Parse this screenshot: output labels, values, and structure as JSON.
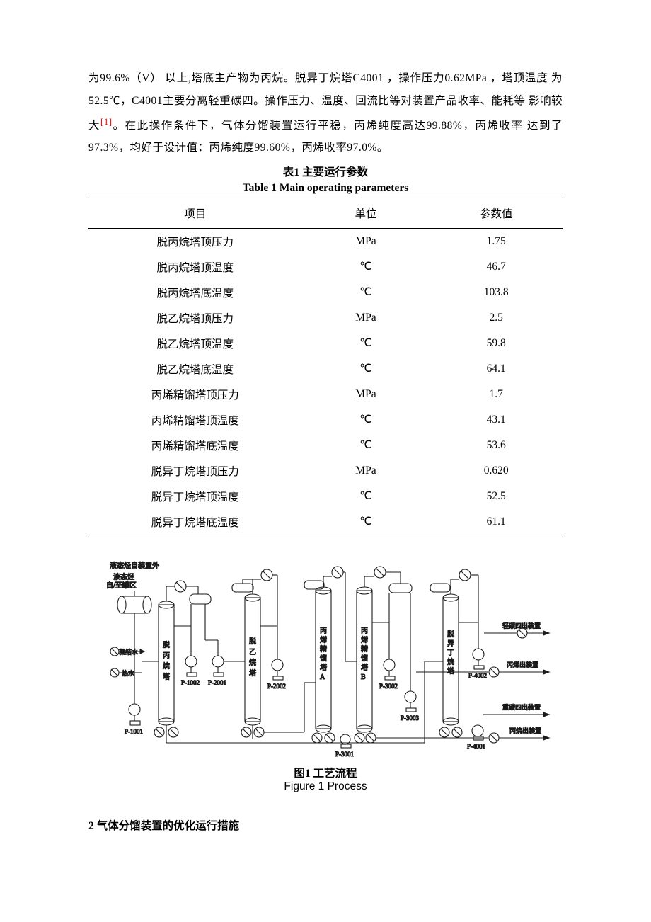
{
  "paragraph": {
    "line1a": "为99.6%（V） 以上,塔底主产物为丙烷。脱异丁烷塔C4001 ，操作压力0.62MPa ，塔顶温度",
    "line2": "为52.5℃，C4001主要分离轻重碳四。操作压力、温度、回流比等对装置产品收率、能耗等",
    "line3a": "影响较大",
    "ref": "[1]",
    "line3b": "。在此操作条件下，气体分馏装置运行平稳，丙烯纯度高达99.88%，丙烯收率",
    "line4": "达到了97.3%，均好于设计值：丙烯纯度99.60%，丙烯收率97.0%。"
  },
  "table": {
    "title_cn": "表1 主要运行参数",
    "title_en": "Table 1 Main operating parameters",
    "columns": [
      "项目",
      "单位",
      "参数值"
    ],
    "col_widths": [
      "45%",
      "27%",
      "28%"
    ],
    "rows": [
      [
        "脱丙烷塔顶压力",
        "MPa",
        "1.75"
      ],
      [
        "脱丙烷塔顶温度",
        "℃",
        "46.7"
      ],
      [
        "脱丙烷塔底温度",
        "℃",
        "103.8"
      ],
      [
        "脱乙烷塔顶压力",
        "MPa",
        "2.5"
      ],
      [
        "脱乙烷塔顶温度",
        "℃",
        "59.8"
      ],
      [
        "脱乙烷塔底温度",
        "℃",
        "64.1"
      ],
      [
        "丙烯精馏塔顶压力",
        "MPa",
        "1.7"
      ],
      [
        "丙烯精馏塔顶温度",
        "℃",
        "43.1"
      ],
      [
        "丙烯精馏塔底温度",
        "℃",
        "53.6"
      ],
      [
        "脱异丁烷塔顶压力",
        "MPa",
        "0.620"
      ],
      [
        "脱异丁烷塔顶温度",
        "℃",
        "52.5"
      ],
      [
        "脱异丁烷塔底温度",
        "℃",
        "61.1"
      ]
    ]
  },
  "figure": {
    "caption_cn": "图1 工艺流程",
    "caption_en": "Figure 1 Process",
    "stroke": "#1a1a1a",
    "stroke_width": 1.1,
    "bg": "#ffffff",
    "inlets": {
      "top": "液态烃自装置外",
      "mid1": "液态烃",
      "mid2": "自/至罐区",
      "cond": "凝结水",
      "hot": "热水"
    },
    "pumps": {
      "p1001": "P-1001",
      "p1002": "P-1002",
      "p2001": "P-2001",
      "p2002": "P-2002",
      "p3001": "P-3001",
      "p3002": "P-3002",
      "p3003": "P-3003",
      "p4001": "P-4001",
      "p4002": "P-4002"
    },
    "towers": {
      "t1a": "脱",
      "t1b": "丙",
      "t1c": "烷",
      "t1d": "塔",
      "t2a": "脱",
      "t2b": "乙",
      "t2c": "烷",
      "t2d": "塔",
      "t3a": "丙",
      "t3b": "烯",
      "t3c": "精",
      "t3d": "馏",
      "t3e": "塔",
      "t3f": "A",
      "t4a": "丙",
      "t4b": "烯",
      "t4c": "精",
      "t4d": "馏",
      "t4e": "塔",
      "t4f": "B",
      "t5a": "脱",
      "t5b": "异",
      "t5c": "丁",
      "t5d": "烷",
      "t5e": "塔"
    },
    "outlets": {
      "o1": "轻碳四出装置",
      "o2": "丙烯出装置",
      "o3": "重碳四出装置",
      "o4": "丙烷出装置"
    }
  },
  "section_heading": "2 气体分馏装置的优化运行措施",
  "colors": {
    "text": "#000000",
    "ref": "#ff0000",
    "border": "#000000",
    "diagram_stroke": "#1a1a1a",
    "background": "#ffffff"
  }
}
